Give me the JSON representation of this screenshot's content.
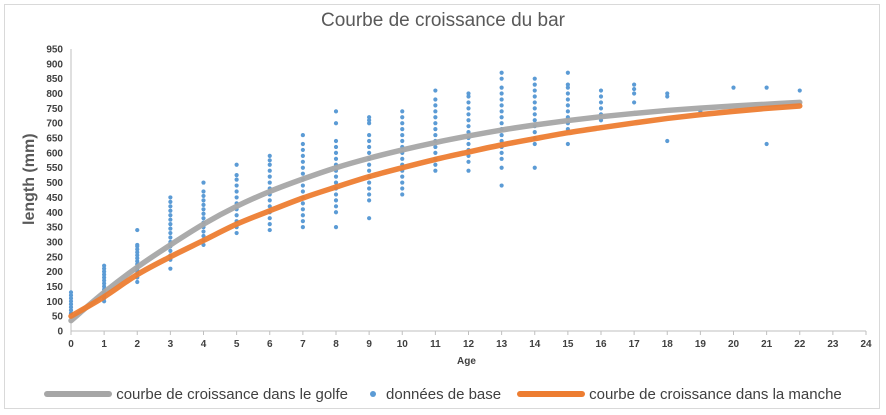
{
  "chart_data": {
    "type": "scatter",
    "title": "Courbe de croissance du bar",
    "xlabel": "Age",
    "ylabel": "length (mm)",
    "xlim": [
      0,
      24
    ],
    "ylim": [
      0,
      950
    ],
    "x_ticks": [
      0,
      1,
      2,
      3,
      4,
      5,
      6,
      7,
      8,
      9,
      10,
      11,
      12,
      13,
      14,
      15,
      16,
      17,
      18,
      19,
      20,
      21,
      22,
      23,
      24
    ],
    "y_ticks": [
      0,
      50,
      100,
      150,
      200,
      250,
      300,
      350,
      400,
      450,
      500,
      550,
      600,
      650,
      700,
      750,
      800,
      850,
      900,
      950
    ],
    "grid": false,
    "legend_position": "bottom",
    "series": [
      {
        "name": "courbe de croissance dans le golfe",
        "kind": "line",
        "color": "#a6a6a6",
        "x": [
          0,
          1,
          2,
          3,
          4,
          5,
          6,
          7,
          8,
          9,
          10,
          11,
          12,
          13,
          14,
          15,
          16,
          17,
          18,
          19,
          20,
          21,
          22
        ],
        "y": [
          35,
          130,
          215,
          290,
          360,
          420,
          470,
          512,
          550,
          582,
          610,
          635,
          657,
          677,
          694,
          709,
          722,
          733,
          743,
          751,
          758,
          764,
          770
        ]
      },
      {
        "name": "données de base",
        "kind": "scatter",
        "color": "#5b9bd5",
        "points": [
          {
            "x": 0,
            "y": [
              60,
              70,
              80,
              90,
              100,
              110,
              120,
              130
            ]
          },
          {
            "x": 1,
            "y": [
              100,
              110,
              120,
              130,
              140,
              150,
              160,
              170,
              180,
              190,
              200,
              210,
              220
            ]
          },
          {
            "x": 2,
            "y": [
              165,
              180,
              195,
              205,
              215,
              225,
              235,
              245,
              255,
              265,
              275,
              285,
              290,
              340
            ]
          },
          {
            "x": 3,
            "y": [
              210,
              240,
              255,
              270,
              285,
              300,
              315,
              330,
              345,
              360,
              375,
              390,
              405,
              420,
              435,
              450
            ]
          },
          {
            "x": 4,
            "y": [
              290,
              305,
              320,
              335,
              350,
              365,
              380,
              395,
              410,
              425,
              440,
              455,
              470,
              500
            ]
          },
          {
            "x": 5,
            "y": [
              330,
              350,
              370,
              390,
              410,
              430,
              450,
              470,
              490,
              510,
              525,
              560
            ]
          },
          {
            "x": 6,
            "y": [
              340,
              360,
              380,
              400,
              420,
              440,
              460,
              480,
              500,
              520,
              540,
              560,
              575,
              590
            ]
          },
          {
            "x": 7,
            "y": [
              350,
              370,
              390,
              410,
              430,
              450,
              470,
              490,
              510,
              530,
              550,
              570,
              590,
              610,
              630,
              660
            ]
          },
          {
            "x": 8,
            "y": [
              350,
              400,
              420,
              440,
              460,
              480,
              500,
              520,
              540,
              560,
              580,
              600,
              620,
              640,
              700,
              740
            ]
          },
          {
            "x": 9,
            "y": [
              380,
              440,
              460,
              480,
              500,
              520,
              540,
              560,
              580,
              600,
              620,
              640,
              660,
              700,
              710,
              720
            ]
          },
          {
            "x": 10,
            "y": [
              460,
              480,
              500,
              520,
              540,
              560,
              580,
              600,
              620,
              640,
              660,
              680,
              700,
              720,
              740
            ]
          },
          {
            "x": 11,
            "y": [
              540,
              560,
              580,
              600,
              620,
              640,
              660,
              680,
              700,
              720,
              740,
              760,
              780,
              810
            ]
          },
          {
            "x": 12,
            "y": [
              540,
              570,
              590,
              610,
              630,
              650,
              670,
              690,
              710,
              730,
              750,
              770,
              790,
              800
            ]
          },
          {
            "x": 13,
            "y": [
              490,
              550,
              580,
              600,
              620,
              640,
              660,
              680,
              700,
              720,
              740,
              760,
              780,
              800,
              820,
              850,
              870
            ]
          },
          {
            "x": 14,
            "y": [
              550,
              630,
              650,
              670,
              690,
              710,
              730,
              750,
              770,
              790,
              810,
              830,
              850
            ]
          },
          {
            "x": 15,
            "y": [
              630,
              680,
              700,
              720,
              740,
              760,
              780,
              800,
              820,
              830,
              870
            ]
          },
          {
            "x": 16,
            "y": [
              710,
              730,
              750,
              770,
              790,
              810
            ]
          },
          {
            "x": 17,
            "y": [
              770,
              800,
              815,
              830
            ]
          },
          {
            "x": 18,
            "y": [
              640,
              790,
              800
            ]
          },
          {
            "x": 19,
            "y": [
              740
            ]
          },
          {
            "x": 20,
            "y": [
              820
            ]
          },
          {
            "x": 21,
            "y": [
              630,
              820
            ]
          },
          {
            "x": 22,
            "y": [
              810
            ]
          }
        ]
      },
      {
        "name": "courbe de croissance dans la manche",
        "kind": "line",
        "color": "#ed7d31",
        "x": [
          0,
          1,
          2,
          3,
          4,
          5,
          6,
          7,
          8,
          9,
          10,
          11,
          12,
          13,
          14,
          15,
          16,
          17,
          18,
          19,
          20,
          21,
          22
        ],
        "y": [
          50,
          115,
          190,
          250,
          305,
          360,
          405,
          448,
          485,
          520,
          550,
          578,
          603,
          627,
          648,
          668,
          685,
          701,
          716,
          729,
          740,
          750,
          758
        ]
      }
    ]
  }
}
